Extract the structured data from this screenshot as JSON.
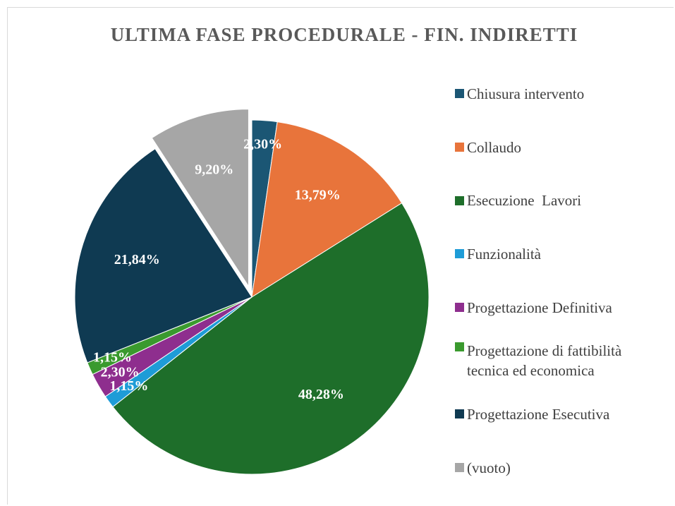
{
  "chart_data": {
    "type": "pie",
    "title": "ULTIMA FASE PROCEDURALE - FIN. INDIRETTI",
    "categories": [
      "Chiusura intervento",
      "Collaudo",
      "Esecuzione  Lavori",
      "Funzionalità",
      "Progettazione Definitiva",
      "Progettazione di fattibilità tecnica ed economica",
      "Progettazione Esecutiva",
      "(vuoto)"
    ],
    "values": [
      2.3,
      13.79,
      48.28,
      1.15,
      2.3,
      1.15,
      21.84,
      9.2
    ],
    "value_labels": [
      "2,30%",
      "13,79%",
      "48,28%",
      "1,15%",
      "2,30%",
      "1,15%",
      "21,84%",
      "9,20%"
    ],
    "colors": [
      "#1b5674",
      "#e8743b",
      "#1e6e2a",
      "#1e9cd7",
      "#8e2e8e",
      "#3a9a2e",
      "#0f3a52",
      "#a6a6a6"
    ],
    "exploded": [
      "(vuoto)"
    ],
    "legend": "right"
  }
}
